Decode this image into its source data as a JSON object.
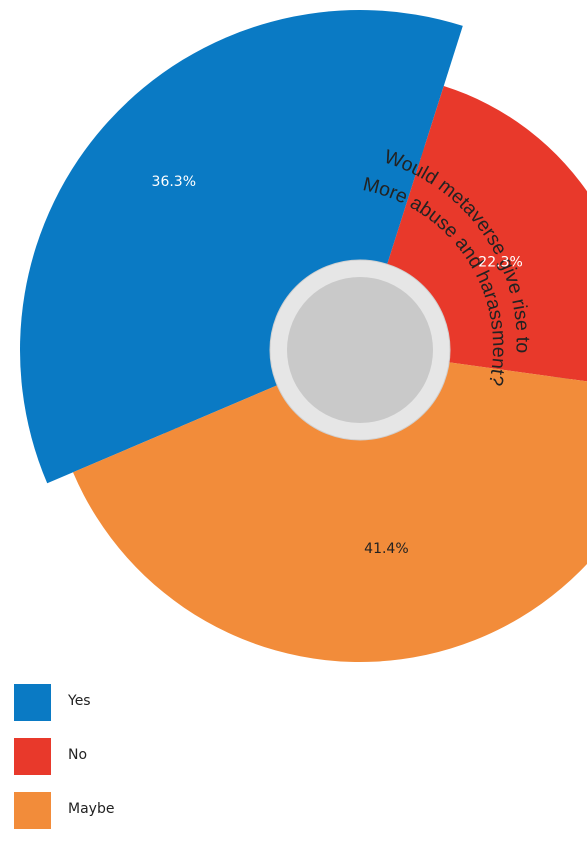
{
  "chart_data": {
    "type": "pie",
    "variant": "exploded-radial-pie",
    "title": "Would metaverse give  rise to More abuse and harassment?",
    "title_lines": [
      "Would metaverse give  rise to",
      "More abuse and harassment?"
    ],
    "slices": [
      {
        "name": "Yes",
        "value": 36.3,
        "label": "36.3%",
        "color": "#0a7ac4"
      },
      {
        "name": "No",
        "value": 22.3,
        "label": "22.3%",
        "color": "#e8392b"
      },
      {
        "name": "Maybe",
        "value": 41.4,
        "label": "41.4%",
        "color": "#f28c3a"
      }
    ],
    "legend": {
      "position": "bottom-left"
    }
  }
}
